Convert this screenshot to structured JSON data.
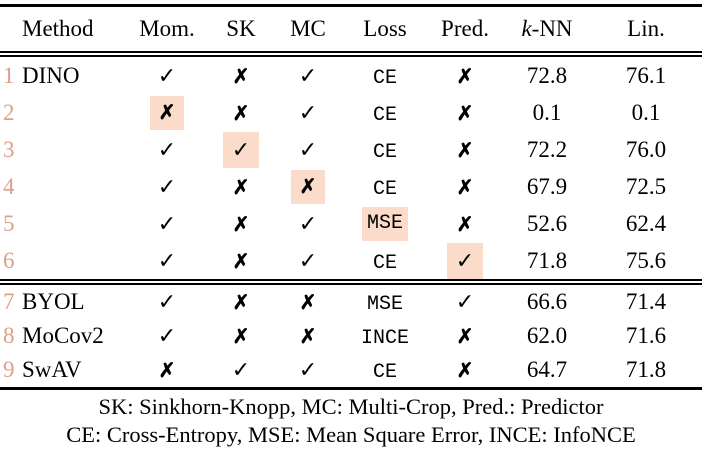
{
  "colors": {
    "row_number": "#df9f87",
    "highlight": "#fbdcca"
  },
  "icons": {
    "check": "✓",
    "cross": "✗"
  },
  "table": {
    "headers": [
      {
        "key": "method",
        "text": "Method"
      },
      {
        "key": "mom",
        "text": "Mom."
      },
      {
        "key": "sk",
        "text": "SK"
      },
      {
        "key": "mc",
        "text": "MC"
      },
      {
        "key": "loss",
        "text": "Loss"
      },
      {
        "key": "pred",
        "text": "Pred."
      },
      {
        "key": "knn",
        "text": "k-NN",
        "italic_prefix": 1
      },
      {
        "key": "lin",
        "text": "Lin."
      }
    ],
    "groups": [
      {
        "rows": [
          {
            "num": "1",
            "method": "DINO",
            "cells": [
              {
                "t": "check"
              },
              {
                "t": "cross"
              },
              {
                "t": "check"
              },
              {
                "t": "loss",
                "v": "CE"
              },
              {
                "t": "cross"
              },
              {
                "t": "val",
                "v": "72.8"
              },
              {
                "t": "val",
                "v": "76.1"
              }
            ]
          },
          {
            "num": "2",
            "method": "",
            "cells": [
              {
                "t": "cross",
                "hl": true
              },
              {
                "t": "cross"
              },
              {
                "t": "check"
              },
              {
                "t": "loss",
                "v": "CE"
              },
              {
                "t": "cross"
              },
              {
                "t": "val",
                "v": "0.1"
              },
              {
                "t": "val",
                "v": "0.1"
              }
            ]
          },
          {
            "num": "3",
            "method": "",
            "cells": [
              {
                "t": "check"
              },
              {
                "t": "check",
                "hl": true
              },
              {
                "t": "check"
              },
              {
                "t": "loss",
                "v": "CE"
              },
              {
                "t": "cross"
              },
              {
                "t": "val",
                "v": "72.2"
              },
              {
                "t": "val",
                "v": "76.0"
              }
            ]
          },
          {
            "num": "4",
            "method": "",
            "cells": [
              {
                "t": "check"
              },
              {
                "t": "cross"
              },
              {
                "t": "cross",
                "hl": true
              },
              {
                "t": "loss",
                "v": "CE"
              },
              {
                "t": "cross"
              },
              {
                "t": "val",
                "v": "67.9"
              },
              {
                "t": "val",
                "v": "72.5"
              }
            ]
          },
          {
            "num": "5",
            "method": "",
            "cells": [
              {
                "t": "check"
              },
              {
                "t": "cross"
              },
              {
                "t": "check"
              },
              {
                "t": "loss",
                "v": "MSE",
                "hl": true
              },
              {
                "t": "cross"
              },
              {
                "t": "val",
                "v": "52.6"
              },
              {
                "t": "val",
                "v": "62.4"
              }
            ]
          },
          {
            "num": "6",
            "method": "",
            "cells": [
              {
                "t": "check"
              },
              {
                "t": "cross"
              },
              {
                "t": "check"
              },
              {
                "t": "loss",
                "v": "CE"
              },
              {
                "t": "check",
                "hl": true
              },
              {
                "t": "val",
                "v": "71.8"
              },
              {
                "t": "val",
                "v": "75.6"
              }
            ]
          }
        ]
      },
      {
        "rows": [
          {
            "num": "7",
            "method": "BYOL",
            "cells": [
              {
                "t": "check"
              },
              {
                "t": "cross"
              },
              {
                "t": "cross"
              },
              {
                "t": "loss",
                "v": "MSE"
              },
              {
                "t": "check"
              },
              {
                "t": "val",
                "v": "66.6"
              },
              {
                "t": "val",
                "v": "71.4"
              }
            ]
          },
          {
            "num": "8",
            "method": "MoCov2",
            "cells": [
              {
                "t": "check"
              },
              {
                "t": "cross"
              },
              {
                "t": "cross"
              },
              {
                "t": "loss",
                "v": "INCE"
              },
              {
                "t": "cross"
              },
              {
                "t": "val",
                "v": "62.0"
              },
              {
                "t": "val",
                "v": "71.6"
              }
            ]
          },
          {
            "num": "9",
            "method": "SwAV",
            "cells": [
              {
                "t": "cross"
              },
              {
                "t": "check"
              },
              {
                "t": "check"
              },
              {
                "t": "loss",
                "v": "CE"
              },
              {
                "t": "cross"
              },
              {
                "t": "val",
                "v": "64.7"
              },
              {
                "t": "val",
                "v": "71.8"
              }
            ]
          }
        ]
      }
    ]
  },
  "footnotes": [
    "SK: Sinkhorn-Knopp, MC: Multi-Crop, Pred.: Predictor",
    "CE: Cross-Entropy, MSE: Mean Square Error, INCE: InfoNCE"
  ]
}
